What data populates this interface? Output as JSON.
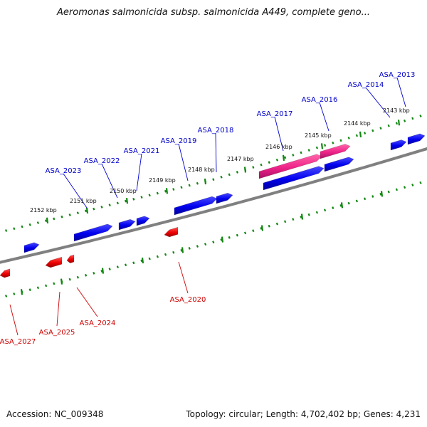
{
  "title": "Aeromonas salmonicida subsp. salmonicida A449, complete geno...",
  "footer": {
    "accession": "Accession: NC_009348",
    "topology": "Topology: circular; Length: 4,702,402 bp; Genes: 4,231"
  },
  "colors": {
    "forward_gene": "#0000ee",
    "reverse_gene": "#ee0000",
    "highlight_gene": "#ee2288",
    "backbone": "#808080",
    "ticks": "#118811",
    "forward_label": "#0000cc",
    "reverse_label": "#cc0000"
  },
  "scale": {
    "unit": "kbp",
    "tick_labels": [
      "2152 kbp",
      "2151 kbp",
      "2150 kbp",
      "2149 kbp",
      "2148 kbp",
      "2147 kbp",
      "2146 kbp",
      "2145 kbp",
      "2144 kbp",
      "2143 kbp"
    ]
  },
  "genes": [
    {
      "label": "ASA_2013",
      "strand": "+"
    },
    {
      "label": "ASA_2014",
      "strand": "+"
    },
    {
      "label": "ASA_2016",
      "strand": "+"
    },
    {
      "label": "ASA_2017",
      "strand": "+",
      "highlight": true
    },
    {
      "label": "ASA_2018",
      "strand": "+"
    },
    {
      "label": "ASA_2019",
      "strand": "+"
    },
    {
      "label": "ASA_2021",
      "strand": "+"
    },
    {
      "label": "ASA_2022",
      "strand": "+"
    },
    {
      "label": "ASA_2023",
      "strand": "+"
    },
    {
      "label": "ASA_2020",
      "strand": "-"
    },
    {
      "label": "ASA_2024",
      "strand": "-"
    },
    {
      "label": "ASA_2025",
      "strand": "-"
    },
    {
      "label": "ASA_2027",
      "strand": "-"
    }
  ]
}
